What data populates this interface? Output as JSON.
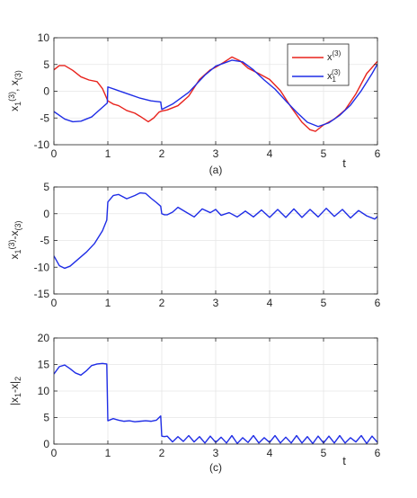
{
  "colors": {
    "red": "#e8221c",
    "blue": "#1f2de6",
    "grid": "#e6e6e6",
    "axis": "#262626"
  },
  "chart_data": [
    {
      "type": "line",
      "panel_label": "(a)",
      "xlabel": "t",
      "ylabel_main": "x",
      "ylabel_parts": [
        "x",
        "1",
        "(3)",
        ", x",
        "(3)"
      ],
      "xlim": [
        0,
        6
      ],
      "ylim": [
        -10,
        10
      ],
      "xticks": [
        0,
        1,
        2,
        3,
        4,
        5,
        6
      ],
      "yticks": [
        10,
        5,
        0,
        -5,
        -10
      ],
      "grid": true,
      "legend_position": "top-right",
      "series": [
        {
          "legend_base": "x",
          "legend_sub": "",
          "legend_sup": "(3)",
          "color": "red",
          "x": [
            0,
            0.1,
            0.2,
            0.35,
            0.5,
            0.65,
            0.8,
            0.9,
            1.0,
            1.1,
            1.2,
            1.35,
            1.5,
            1.6,
            1.75,
            1.85,
            1.95,
            2.0,
            2.1,
            2.3,
            2.5,
            2.7,
            2.9,
            3.0,
            3.15,
            3.3,
            3.45,
            3.6,
            3.8,
            4.0,
            4.2,
            4.4,
            4.6,
            4.75,
            4.85,
            5.0,
            5.2,
            5.4,
            5.6,
            5.8,
            6.0
          ],
          "y": [
            4.0,
            4.8,
            4.8,
            3.9,
            2.7,
            2.1,
            1.8,
            0.5,
            -1.8,
            -2.4,
            -2.7,
            -3.6,
            -4.1,
            -4.7,
            -5.7,
            -5.0,
            -3.9,
            -3.7,
            -3.5,
            -2.7,
            -0.9,
            2.2,
            4.0,
            4.5,
            5.4,
            6.4,
            5.7,
            4.3,
            3.3,
            2.2,
            0.1,
            -3.0,
            -5.8,
            -7.2,
            -7.5,
            -6.3,
            -5.2,
            -3.5,
            -0.5,
            3.3,
            5.6
          ]
        },
        {
          "legend_base": "x",
          "legend_sub": "1",
          "legend_sup": "(3)",
          "color": "blue",
          "x": [
            0,
            0.2,
            0.35,
            0.5,
            0.7,
            0.9,
            0.99,
            1.0,
            1.2,
            1.4,
            1.6,
            1.8,
            1.98,
            2.0,
            2.2,
            2.5,
            2.8,
            3.0,
            3.3,
            3.5,
            3.7,
            3.9,
            4.1,
            4.3,
            4.5,
            4.7,
            4.9,
            5.1,
            5.3,
            5.5,
            5.7,
            5.9,
            6.0
          ],
          "y": [
            -3.8,
            -5.2,
            -5.7,
            -5.6,
            -4.8,
            -3.0,
            -2.2,
            0.8,
            0.1,
            -0.6,
            -1.3,
            -1.8,
            -2.0,
            -3.4,
            -2.4,
            -0.2,
            3.0,
            4.7,
            5.8,
            5.5,
            4.0,
            2.1,
            0.4,
            -1.8,
            -3.9,
            -5.8,
            -6.6,
            -5.9,
            -4.5,
            -2.6,
            0.1,
            3.3,
            5.1
          ]
        }
      ]
    },
    {
      "type": "line",
      "panel_label": "",
      "xlabel": "",
      "ylabel_parts": [
        "x",
        "1",
        "(3)",
        "-x",
        "(3)"
      ],
      "xlim": [
        0,
        6
      ],
      "ylim": [
        -15,
        5
      ],
      "xticks": [
        0,
        1,
        2,
        3,
        4,
        5,
        6
      ],
      "yticks": [
        5,
        0,
        -5,
        -10,
        -15
      ],
      "grid": true,
      "series": [
        {
          "color": "blue",
          "x": [
            0,
            0.1,
            0.2,
            0.3,
            0.45,
            0.6,
            0.75,
            0.9,
            0.98,
            1.0,
            1.1,
            1.2,
            1.35,
            1.5,
            1.6,
            1.7,
            1.8,
            1.9,
            1.98,
            2.0,
            2.05,
            2.1,
            2.2,
            2.3,
            2.45,
            2.6,
            2.75,
            2.9,
            3.0,
            3.1,
            3.25,
            3.4,
            3.55,
            3.7,
            3.85,
            4.0,
            4.15,
            4.3,
            4.45,
            4.6,
            4.75,
            4.9,
            5.05,
            5.2,
            5.35,
            5.5,
            5.65,
            5.8,
            5.95,
            6.0
          ],
          "y": [
            -7.9,
            -9.7,
            -10.2,
            -9.8,
            -8.5,
            -7.2,
            -5.6,
            -3.2,
            -1.2,
            2.2,
            3.4,
            3.6,
            2.8,
            3.4,
            3.9,
            3.8,
            2.9,
            2.1,
            1.4,
            0.0,
            -0.2,
            -0.2,
            0.3,
            1.2,
            0.3,
            -0.6,
            0.9,
            0.2,
            0.8,
            -0.3,
            0.2,
            -0.6,
            0.5,
            -0.6,
            0.7,
            -0.7,
            0.8,
            -0.7,
            0.9,
            -0.7,
            0.8,
            -0.6,
            1.0,
            -0.5,
            0.8,
            -0.8,
            0.6,
            -0.4,
            -1.0,
            -0.5
          ]
        }
      ]
    },
    {
      "type": "line",
      "panel_label": "(c)",
      "xlabel": "t",
      "ylabel_parts": [
        "|x",
        "1",
        "",
        "-x|",
        "2",
        ""
      ],
      "xlim": [
        0,
        6
      ],
      "ylim": [
        0,
        20
      ],
      "xticks": [
        0,
        1,
        2,
        3,
        4,
        5,
        6
      ],
      "yticks": [
        20,
        15,
        10,
        5,
        0
      ],
      "grid": true,
      "series": [
        {
          "color": "blue",
          "x": [
            0,
            0.1,
            0.2,
            0.3,
            0.4,
            0.5,
            0.6,
            0.7,
            0.8,
            0.9,
            0.98,
            1.0,
            1.1,
            1.2,
            1.3,
            1.4,
            1.5,
            1.6,
            1.7,
            1.8,
            1.9,
            1.98,
            2.0,
            2.05,
            2.1,
            2.2,
            2.3,
            2.4,
            2.5,
            2.6,
            2.7,
            2.8,
            2.9,
            3.0,
            3.1,
            3.2,
            3.3,
            3.4,
            3.5,
            3.6,
            3.7,
            3.8,
            3.9,
            4.0,
            4.1,
            4.2,
            4.3,
            4.4,
            4.5,
            4.6,
            4.7,
            4.8,
            4.9,
            5.0,
            5.1,
            5.2,
            5.3,
            5.4,
            5.5,
            5.6,
            5.7,
            5.8,
            5.9,
            6.0
          ],
          "y": [
            13.2,
            14.6,
            14.9,
            14.2,
            13.4,
            13.0,
            13.8,
            14.8,
            15.1,
            15.2,
            15.1,
            4.4,
            4.8,
            4.5,
            4.3,
            4.4,
            4.2,
            4.3,
            4.4,
            4.3,
            4.5,
            5.3,
            1.5,
            1.4,
            1.5,
            0.4,
            1.4,
            0.5,
            1.6,
            0.4,
            1.4,
            0.2,
            1.5,
            0.3,
            1.3,
            0.2,
            1.6,
            0.1,
            1.2,
            0.3,
            1.6,
            0.2,
            1.2,
            0.3,
            1.6,
            0.2,
            1.3,
            0.2,
            1.6,
            0.2,
            1.4,
            0.1,
            1.5,
            0.2,
            1.5,
            0.2,
            1.6,
            0.2,
            1.2,
            0.4,
            1.6,
            0.1,
            1.5,
            0.3
          ]
        }
      ]
    }
  ]
}
